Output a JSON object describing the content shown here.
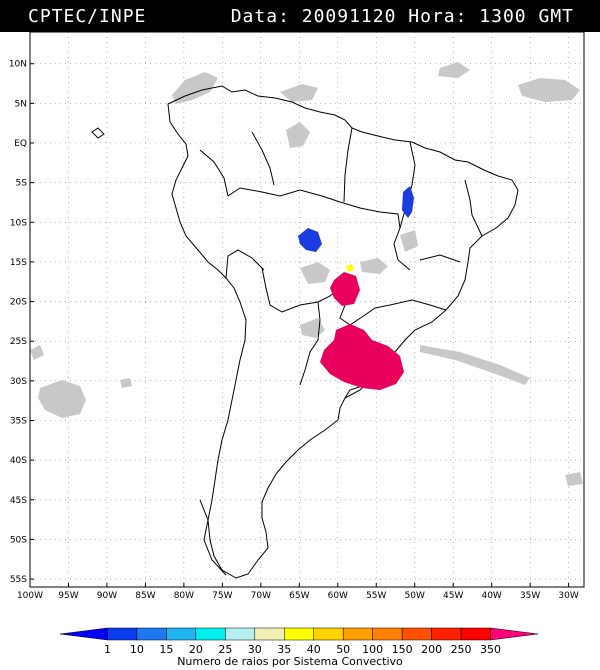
{
  "header": {
    "source": "CPTEC/INPE",
    "datetime": "Data: 20091120 Hora: 1300 GMT"
  },
  "map": {
    "region": "South America",
    "lat_labels": [
      "10N",
      "5N",
      "EQ",
      "5S",
      "10S",
      "15S",
      "20S",
      "25S",
      "30S",
      "35S",
      "40S",
      "45S",
      "50S",
      "55S"
    ],
    "lon_labels": [
      "100W",
      "95W",
      "90W",
      "85W",
      "80W",
      "75W",
      "70W",
      "65W",
      "60W",
      "55W",
      "50W",
      "45W",
      "40W",
      "35W",
      "30W"
    ],
    "lat_range": [
      -56,
      14
    ],
    "lon_range": [
      -100,
      -28
    ],
    "grid": true,
    "colors": {
      "cloud": "#c8c8c8",
      "blue": "#1a3ce0",
      "yellow": "#ffff00",
      "magenta": "#e8005c"
    },
    "convective_systems": [
      {
        "area": "Mato Grosso (Brazil)",
        "color_level": "10-15"
      },
      {
        "area": "Tocantins (Brazil)",
        "color_level": "10-15"
      },
      {
        "area": "Mato Grosso do Sul / Paraguay",
        "color_level": ">350"
      },
      {
        "area": "Paraguay / Northeast Argentina / South Brazil / Uruguay",
        "color_level": ">350"
      }
    ]
  },
  "colorbar": {
    "labels": [
      "1",
      "10",
      "15",
      "20",
      "25",
      "30",
      "35",
      "40",
      "50",
      "100",
      "150",
      "200",
      "250",
      "350"
    ],
    "colors": [
      "#0000ff",
      "#0a3cf0",
      "#1e78f0",
      "#1eb4f0",
      "#00f0f0",
      "#b4f0f0",
      "#f0f0b4",
      "#ffff00",
      "#ffd200",
      "#ffa000",
      "#ff8000",
      "#ff5000",
      "#ff2000",
      "#ff0000",
      "#ff0078"
    ],
    "title": "Numero de raios por Sistema Convectivo"
  }
}
